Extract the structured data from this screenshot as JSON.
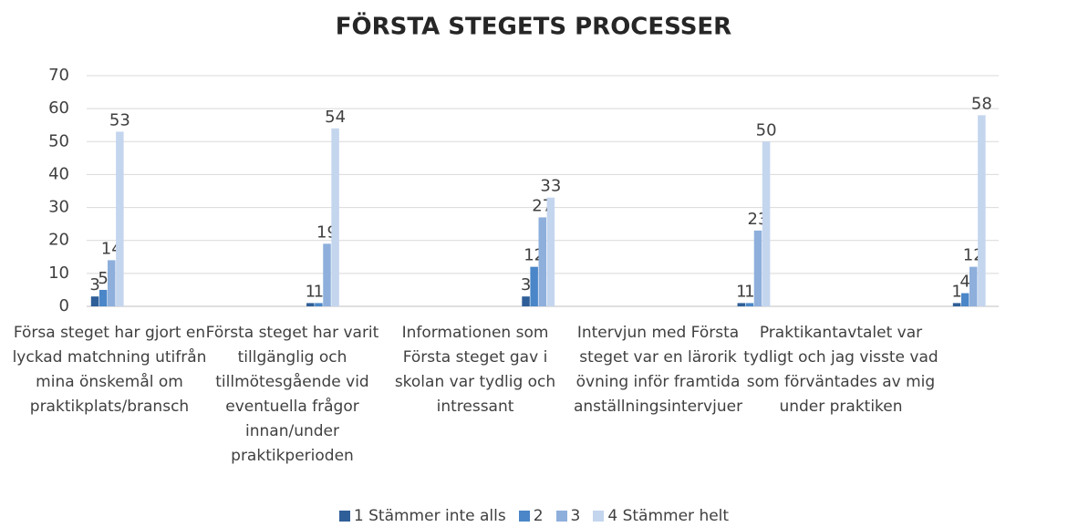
{
  "chart_data": {
    "type": "bar",
    "title": "FÖRSTA STEGETS PROCESSER",
    "categories": [
      "Försa steget har gjort en lyckad matchning utifrån mina önskemål om praktikplats/bransch",
      "Första steget har varit tillgänglig och tillmötesgående vid eventuella frågor innan/under praktikperioden",
      "Informationen som Första steget gav i skolan var tydlig och intressant",
      "Intervjun med Första steget var en lärorik övning inför framtida anställningsintervjuer",
      "Praktikantavtalet var tydligt och jag visste vad som förväntades av mig under praktiken"
    ],
    "series": [
      {
        "name": "1 Stämmer inte alls",
        "color": "#2f5f98",
        "values": [
          3,
          1,
          3,
          1,
          1
        ]
      },
      {
        "name": "2",
        "color": "#4a86c8",
        "values": [
          5,
          1,
          12,
          1,
          4
        ]
      },
      {
        "name": "3",
        "color": "#8eafdc",
        "values": [
          14,
          19,
          27,
          23,
          12
        ]
      },
      {
        "name": "4 Stämmer helt",
        "color": "#c4d5ee",
        "values": [
          53,
          54,
          33,
          50,
          58
        ]
      }
    ],
    "ylim": [
      0,
      70
    ],
    "yticks": [
      0,
      10,
      20,
      30,
      40,
      50,
      60,
      70
    ],
    "grid": true,
    "legend": "bottom"
  }
}
